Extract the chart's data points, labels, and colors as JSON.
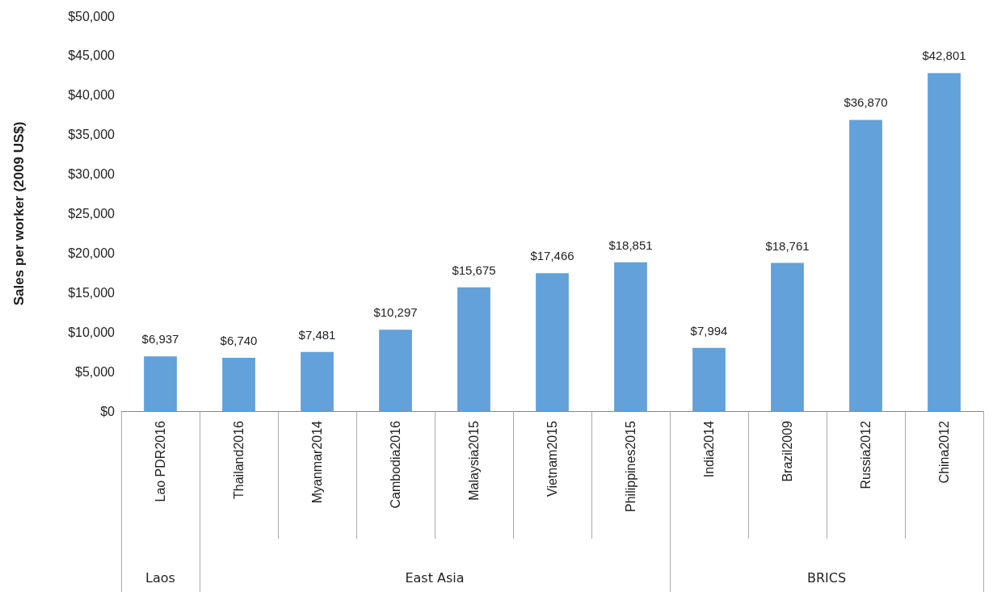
{
  "chart_data": {
    "type": "bar",
    "ylabel": "Sales per worker (2009 US$)",
    "categories": [
      "Lao PDR2016",
      "Thailand2016",
      "Myanmar2014",
      "Cambodia2016",
      "Malaysia2015",
      "Vietnam2015",
      "Philippines2015",
      "India2014",
      "Brazil2009",
      "Russia2012",
      "China2012"
    ],
    "values": [
      6937,
      6740,
      7481,
      10297,
      15675,
      17466,
      18851,
      7994,
      18761,
      36870,
      42801
    ],
    "value_labels": [
      "$6,937",
      "$6,740",
      "$7,481",
      "$10,297",
      "$15,675",
      "$17,466",
      "$18,851",
      "$7,994",
      "$18,761",
      "$36,870",
      "$42,801"
    ],
    "color": "#62a1d9",
    "ylim": [
      0,
      50000
    ],
    "yticks": [
      {
        "value": 0,
        "label": "$0"
      },
      {
        "value": 5000,
        "label": "$5,000"
      },
      {
        "value": 10000,
        "label": "$10,000"
      },
      {
        "value": 15000,
        "label": "$15,000"
      },
      {
        "value": 20000,
        "label": "$20,000"
      },
      {
        "value": 25000,
        "label": "$25,000"
      },
      {
        "value": 30000,
        "label": "$30,000"
      },
      {
        "value": 35000,
        "label": "$35,000"
      },
      {
        "value": 40000,
        "label": "$40,000"
      },
      {
        "value": 45000,
        "label": "$45,000"
      },
      {
        "value": 50000,
        "label": "$50,000"
      }
    ],
    "grid": false,
    "annotations": [
      "Laos",
      "East Asia",
      "BRICS"
    ]
  }
}
